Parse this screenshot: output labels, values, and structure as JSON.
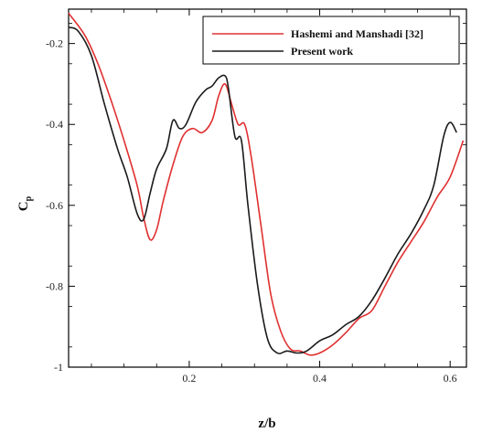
{
  "chart_data": {
    "type": "line",
    "xlabel": "z/b",
    "ylabel": "C",
    "ylabel_subscript": "p",
    "xlim": [
      0.015,
      0.625
    ],
    "ylim": [
      -1.0,
      -0.115
    ],
    "x_ticks": [
      0.2,
      0.4,
      0.6
    ],
    "x_tick_labels": [
      "0.2",
      "0.4",
      "0.6"
    ],
    "y_ticks": [
      -1.0,
      -0.8,
      -0.6,
      -0.4,
      -0.2
    ],
    "y_tick_labels": [
      "-1",
      "-0.8",
      "-0.6",
      "-0.4",
      "-0.2"
    ],
    "grid": false,
    "legend_position": "top-right",
    "series": [
      {
        "name": "Hashemi and Manshadi [32]",
        "color": "#e03030",
        "x": [
          0.015,
          0.04,
          0.06,
          0.08,
          0.1,
          0.12,
          0.13,
          0.14,
          0.15,
          0.16,
          0.175,
          0.19,
          0.205,
          0.22,
          0.235,
          0.245,
          0.255,
          0.265,
          0.275,
          0.285,
          0.295,
          0.31,
          0.325,
          0.34,
          0.355,
          0.37,
          0.385,
          0.4,
          0.42,
          0.44,
          0.46,
          0.48,
          0.5,
          0.52,
          0.54,
          0.56,
          0.58,
          0.6,
          0.62
        ],
        "y": [
          -0.125,
          -0.18,
          -0.25,
          -0.34,
          -0.44,
          -0.55,
          -0.63,
          -0.685,
          -0.66,
          -0.59,
          -0.5,
          -0.43,
          -0.41,
          -0.42,
          -0.39,
          -0.33,
          -0.3,
          -0.35,
          -0.4,
          -0.4,
          -0.48,
          -0.65,
          -0.82,
          -0.91,
          -0.955,
          -0.96,
          -0.97,
          -0.965,
          -0.945,
          -0.915,
          -0.88,
          -0.86,
          -0.8,
          -0.74,
          -0.69,
          -0.64,
          -0.58,
          -0.53,
          -0.44
        ]
      },
      {
        "name": "Present work",
        "color": "#1a1a1a",
        "x": [
          0.015,
          0.03,
          0.05,
          0.07,
          0.09,
          0.105,
          0.12,
          0.13,
          0.14,
          0.15,
          0.165,
          0.175,
          0.185,
          0.195,
          0.21,
          0.225,
          0.235,
          0.245,
          0.255,
          0.26,
          0.27,
          0.28,
          0.29,
          0.305,
          0.32,
          0.335,
          0.35,
          0.365,
          0.38,
          0.4,
          0.42,
          0.44,
          0.46,
          0.48,
          0.5,
          0.52,
          0.54,
          0.56,
          0.575,
          0.59,
          0.6,
          0.61
        ],
        "y": [
          -0.16,
          -0.17,
          -0.23,
          -0.35,
          -0.46,
          -0.53,
          -0.62,
          -0.635,
          -0.57,
          -0.51,
          -0.46,
          -0.39,
          -0.41,
          -0.4,
          -0.345,
          -0.315,
          -0.305,
          -0.285,
          -0.28,
          -0.31,
          -0.43,
          -0.44,
          -0.6,
          -0.8,
          -0.93,
          -0.965,
          -0.96,
          -0.965,
          -0.96,
          -0.935,
          -0.92,
          -0.895,
          -0.875,
          -0.835,
          -0.78,
          -0.72,
          -0.67,
          -0.61,
          -0.55,
          -0.43,
          -0.395,
          -0.42
        ]
      }
    ]
  }
}
